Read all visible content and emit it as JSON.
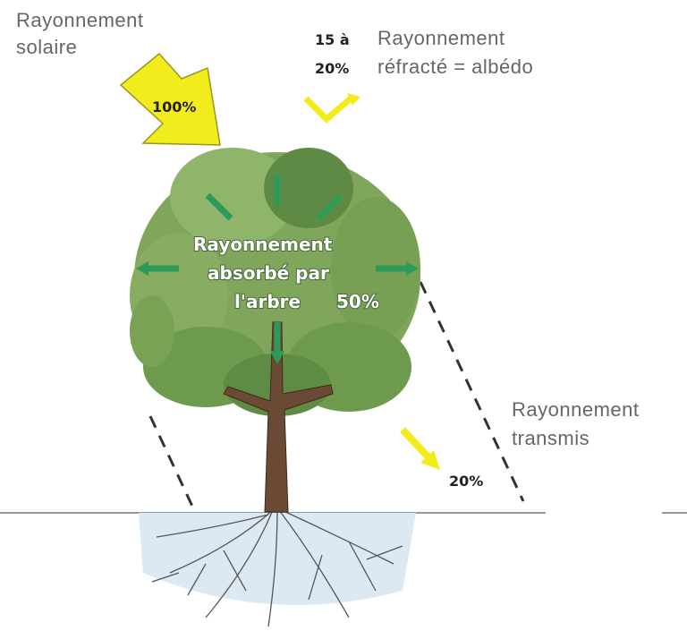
{
  "labels": {
    "solar": {
      "lines": [
        "Rayonnement",
        "solaire"
      ],
      "percent": "100%"
    },
    "albedo": {
      "percent_lines": [
        "15 à",
        "20%"
      ],
      "lines": [
        "Rayonnement",
        "réfracté = albédo"
      ]
    },
    "absorbed": {
      "lines": [
        "Rayonnement",
        "absorbé par",
        "l'arbre"
      ],
      "percent": "50%"
    },
    "transmitted": {
      "lines": [
        "Rayonnement",
        "transmis"
      ],
      "percent": "20%"
    }
  }
}
